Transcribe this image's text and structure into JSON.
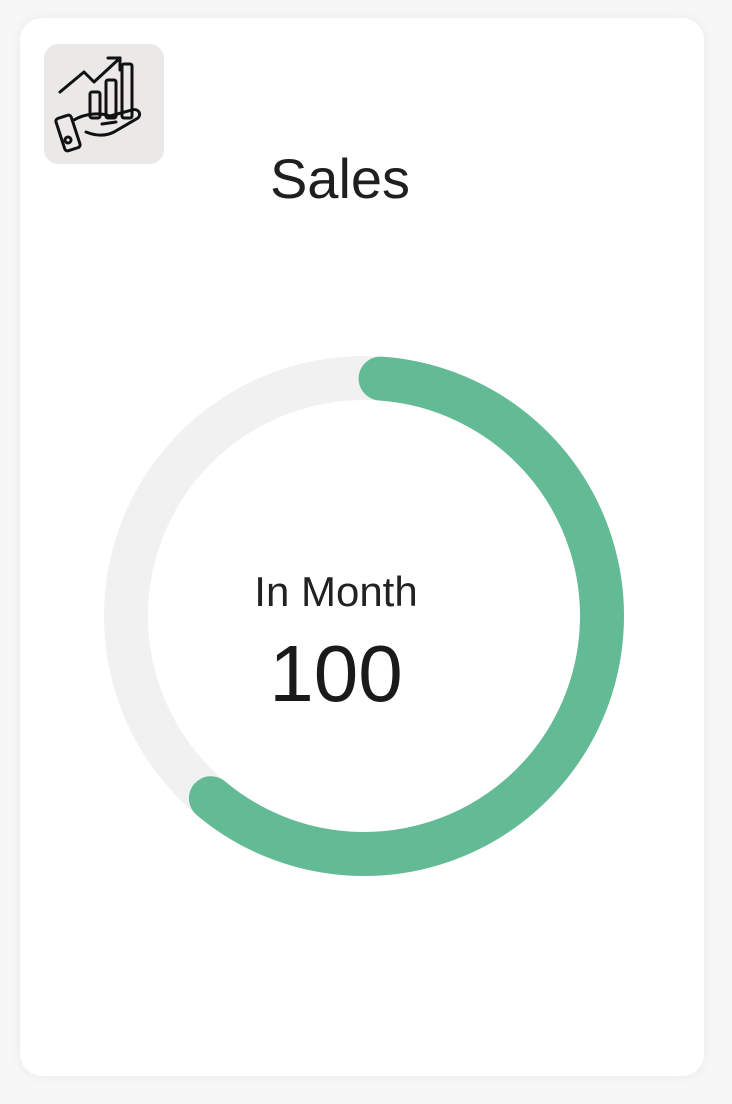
{
  "card": {
    "icon": "sales-growth-hand-icon",
    "title": "Sales"
  },
  "gauge": {
    "caption": "In Month",
    "value": "100",
    "progress_fraction": 0.6,
    "track_color": "#f1f1f1",
    "fill_color": "#62bb95"
  }
}
